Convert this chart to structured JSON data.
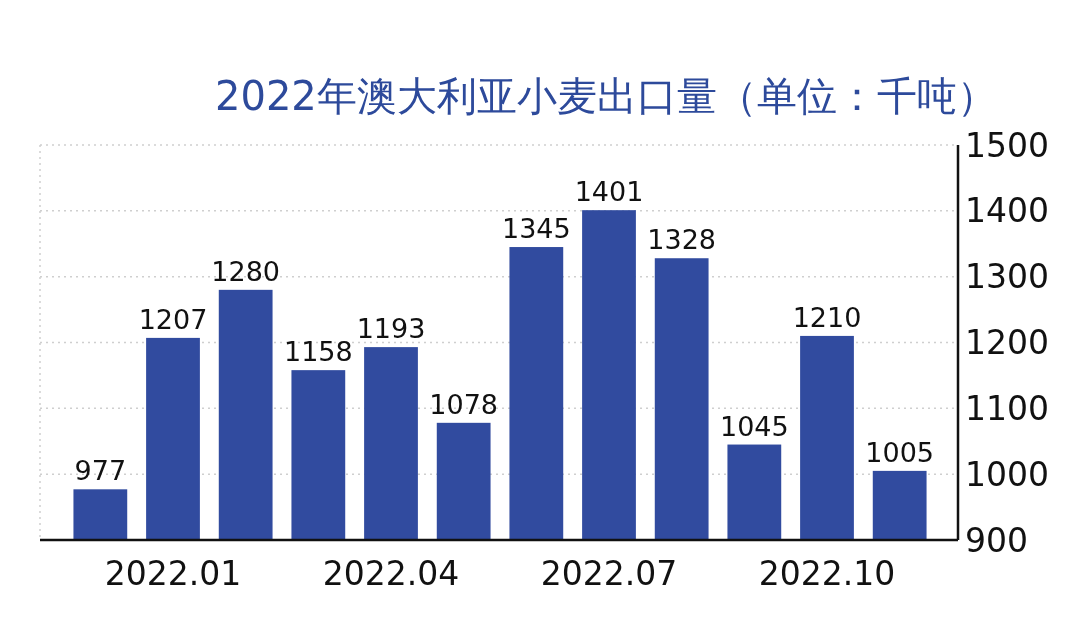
{
  "chart_data": {
    "type": "bar",
    "title": "2022年澳大利亚小麦出口量（单位：千吨）",
    "categories": [
      null,
      "2022.01",
      null,
      null,
      "2022.04",
      null,
      null,
      "2022.07",
      null,
      null,
      "2022.10",
      null
    ],
    "values": [
      977,
      1207,
      1280,
      1158,
      1193,
      1078,
      1345,
      1401,
      1328,
      1045,
      1210,
      1005
    ],
    "color": "#314b9f",
    "ylim": [
      900,
      1500
    ],
    "yticks": [
      900,
      1000,
      1100,
      1200,
      1300,
      1400,
      1500
    ],
    "grid": "y",
    "data_labels": true
  }
}
